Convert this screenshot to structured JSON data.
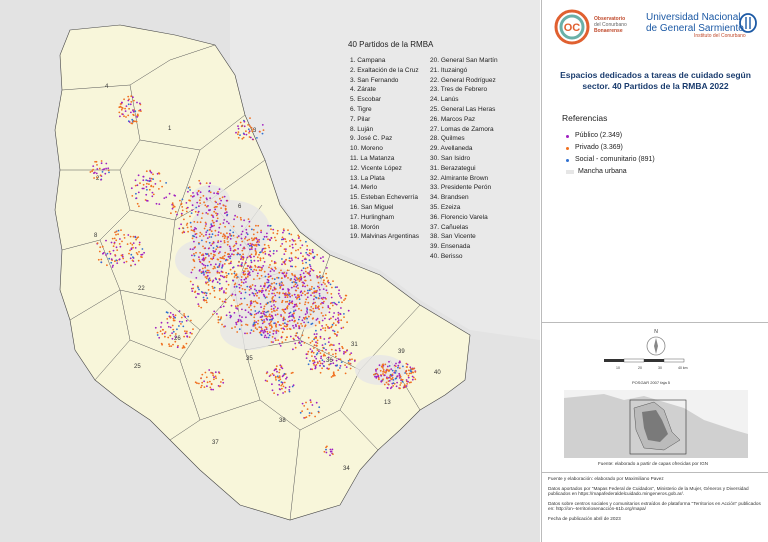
{
  "list_title": "40 Partidos  de la RMBA",
  "partidos_col1": [
    "1. Campana",
    "2. Exaltación de la Cruz",
    "3. San Fernando",
    "4. Zárate",
    "5. Escobar",
    "6. Tigre",
    "7. Pilar",
    "8. Luján",
    "9. José C. Paz",
    "10. Moreno",
    "11. La Matanza",
    "12. Vicente López",
    "13. La Plata",
    "14. Merlo",
    "15. Esteban Echeverría",
    "16. San Miguel",
    "17. Hurlingham",
    "18. Morón",
    "19. Malvinas Argentinas"
  ],
  "partidos_col2": [
    "20. General San Martín",
    "21. Ituzaingó",
    "22. General Rodríguez",
    "23. Tres de Febrero",
    "24. Lanús",
    "25. General Las Heras",
    "26. Marcos Paz",
    "27. Lomas de Zamora",
    "28. Quilmes",
    "29. Avellaneda",
    "30. San Isidro",
    "31. Berazategui",
    "32. Almirante Brown",
    "33. Presidente Perón",
    "34. Brandsen",
    "35. Ezeiza",
    "36. Florencio Varela",
    "37. Cañuelas",
    "38. San Vicente",
    "39. Ensenada",
    "40. Berisso"
  ],
  "map_labels": [
    {
      "text": "4"
    },
    {
      "text": "1"
    },
    {
      "text": "3"
    },
    {
      "text": "2"
    },
    {
      "text": "6"
    },
    {
      "text": "8"
    },
    {
      "text": "22"
    },
    {
      "text": "26"
    },
    {
      "text": "25"
    },
    {
      "text": "35"
    },
    {
      "text": "31"
    },
    {
      "text": "36"
    },
    {
      "text": "39"
    },
    {
      "text": "40"
    },
    {
      "text": "13"
    },
    {
      "text": "37"
    },
    {
      "text": "38"
    },
    {
      "text": "34"
    }
  ],
  "header": {
    "logo_initials": "OC",
    "obs_line1": "Observatorio",
    "obs_line2": "del Conurbano",
    "obs_line3": "Bonaerense",
    "ungs_line1": "Universidad  Nacional",
    "ungs_line2": "de General Sarmiento",
    "ungs_line3": "Instituto del Conurbano"
  },
  "title": "Espacios dedicados a tareas de cuidado según sector. 40 Partidos de la RMBA 2022",
  "references_title": "Referencias",
  "legend": [
    {
      "label": "Público (2.349)",
      "color": "#a020c0"
    },
    {
      "label": "Privado (3.369)",
      "color": "#f07020"
    },
    {
      "label": "Social - comunitario (891)",
      "color": "#3070d0"
    },
    {
      "label": "Mancha urbana",
      "color": "#e6e6e6"
    }
  ],
  "scale": {
    "north": "N",
    "ticks": [
      "10",
      "20",
      "30",
      "40 km"
    ]
  },
  "projection": "POSGAR 2007 faja 5",
  "inset_caption": "Fuente: elaborado a partir de capas ofrecidas por IGN",
  "footer": {
    "p1": "Fuente y elaboración: elaborado por Maximiliano Pavez",
    "p2": "Datos aportados por \"Mapas Federal de Cuidados\", Ministerio de la Mujer, Géneros y Diversidad publicados en https://mapafederaldelcuidado.mingeneros.gob.ar/.",
    "p3": "Datos sobre centros sociales y comunitarios extraídos de plataforma \"Territorios en Acción\" publicados en: http://on--territoriosenacción-61b.org/mapa/",
    "p4": "Fecha de publicación abril de 2023"
  }
}
